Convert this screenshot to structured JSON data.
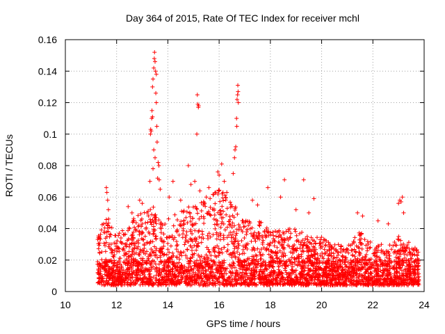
{
  "chart_data": {
    "type": "scatter",
    "title": "Day 364 of 2015, Rate Of TEC Index for receiver mchl",
    "xlabel": "GPS time / hours",
    "ylabel": "ROTI / TECUs",
    "xlim": [
      10,
      24
    ],
    "ylim": [
      0,
      0.16
    ],
    "xticks": [
      "10",
      "12",
      "14",
      "16",
      "18",
      "20",
      "22",
      "24"
    ],
    "yticks": [
      "0",
      "0.02",
      "0.04",
      "0.06",
      "0.08",
      "0.1",
      "0.12",
      "0.14",
      "0.16"
    ],
    "grid": true,
    "marker": "plus",
    "color": "#ff0000",
    "time_range_hours": [
      11.25,
      23.8
    ],
    "baseline_envelope": [
      [
        11.25,
        0.035
      ],
      [
        11.6,
        0.05
      ],
      [
        12.0,
        0.035
      ],
      [
        12.5,
        0.045
      ],
      [
        13.0,
        0.05
      ],
      [
        13.4,
        0.055
      ],
      [
        13.8,
        0.045
      ],
      [
        14.3,
        0.05
      ],
      [
        14.8,
        0.055
      ],
      [
        15.2,
        0.06
      ],
      [
        15.6,
        0.06
      ],
      [
        16.0,
        0.065
      ],
      [
        16.4,
        0.06
      ],
      [
        16.8,
        0.05
      ],
      [
        17.2,
        0.045
      ],
      [
        17.6,
        0.045
      ],
      [
        18.0,
        0.04
      ],
      [
        18.5,
        0.04
      ],
      [
        19.0,
        0.04
      ],
      [
        19.5,
        0.035
      ],
      [
        20.0,
        0.035
      ],
      [
        20.5,
        0.03
      ],
      [
        21.0,
        0.03
      ],
      [
        21.5,
        0.038
      ],
      [
        22.0,
        0.03
      ],
      [
        22.5,
        0.03
      ],
      [
        23.0,
        0.035
      ],
      [
        23.8,
        0.03
      ]
    ],
    "peak_points": [
      [
        11.6,
        0.066
      ],
      [
        11.62,
        0.063
      ],
      [
        11.65,
        0.058
      ],
      [
        11.68,
        0.052
      ],
      [
        12.45,
        0.054
      ],
      [
        12.6,
        0.05
      ],
      [
        12.9,
        0.058
      ],
      [
        13.0,
        0.056
      ],
      [
        13.32,
        0.1
      ],
      [
        13.35,
        0.102
      ],
      [
        13.37,
        0.11
      ],
      [
        13.38,
        0.115
      ],
      [
        13.4,
        0.13
      ],
      [
        13.42,
        0.135
      ],
      [
        13.45,
        0.142
      ],
      [
        13.47,
        0.148
      ],
      [
        13.48,
        0.152
      ],
      [
        13.5,
        0.146
      ],
      [
        13.52,
        0.14
      ],
      [
        13.53,
        0.126
      ],
      [
        13.55,
        0.12
      ],
      [
        13.57,
        0.105
      ],
      [
        13.58,
        0.095
      ],
      [
        13.5,
        0.085
      ],
      [
        13.62,
        0.082
      ],
      [
        13.65,
        0.08
      ],
      [
        13.45,
        0.09
      ],
      [
        13.6,
        0.072
      ],
      [
        13.42,
        0.078
      ],
      [
        13.66,
        0.071
      ],
      [
        13.3,
        0.07
      ],
      [
        13.7,
        0.065
      ],
      [
        13.55,
        0.138
      ],
      [
        13.4,
        0.111
      ],
      [
        13.33,
        0.103
      ],
      [
        14.2,
        0.07
      ],
      [
        14.05,
        0.06
      ],
      [
        14.5,
        0.058
      ],
      [
        14.8,
        0.08
      ],
      [
        14.9,
        0.068
      ],
      [
        15.05,
        0.07
      ],
      [
        15.15,
        0.125
      ],
      [
        15.17,
        0.119
      ],
      [
        15.19,
        0.117
      ],
      [
        15.2,
        0.118
      ],
      [
        15.13,
        0.1
      ],
      [
        15.25,
        0.064
      ],
      [
        15.5,
        0.06
      ],
      [
        15.6,
        0.066
      ],
      [
        15.95,
        0.076
      ],
      [
        16.0,
        0.074
      ],
      [
        16.1,
        0.081
      ],
      [
        16.2,
        0.07
      ],
      [
        16.3,
        0.063
      ],
      [
        16.55,
        0.075
      ],
      [
        16.6,
        0.085
      ],
      [
        16.62,
        0.09
      ],
      [
        16.65,
        0.092
      ],
      [
        16.7,
        0.122
      ],
      [
        16.72,
        0.125
      ],
      [
        16.73,
        0.131
      ],
      [
        16.74,
        0.127
      ],
      [
        16.68,
        0.11
      ],
      [
        16.69,
        0.105
      ],
      [
        16.75,
        0.12
      ],
      [
        17.3,
        0.058
      ],
      [
        17.5,
        0.055
      ],
      [
        17.9,
        0.066
      ],
      [
        18.4,
        0.06
      ],
      [
        18.55,
        0.071
      ],
      [
        19.0,
        0.052
      ],
      [
        19.3,
        0.071
      ],
      [
        19.5,
        0.05
      ],
      [
        19.7,
        0.059
      ],
      [
        21.4,
        0.05
      ],
      [
        21.6,
        0.048
      ],
      [
        22.2,
        0.045
      ],
      [
        22.6,
        0.043
      ],
      [
        23.0,
        0.056
      ],
      [
        23.05,
        0.058
      ],
      [
        23.1,
        0.057
      ],
      [
        23.15,
        0.06
      ],
      [
        23.2,
        0.05
      ]
    ]
  }
}
